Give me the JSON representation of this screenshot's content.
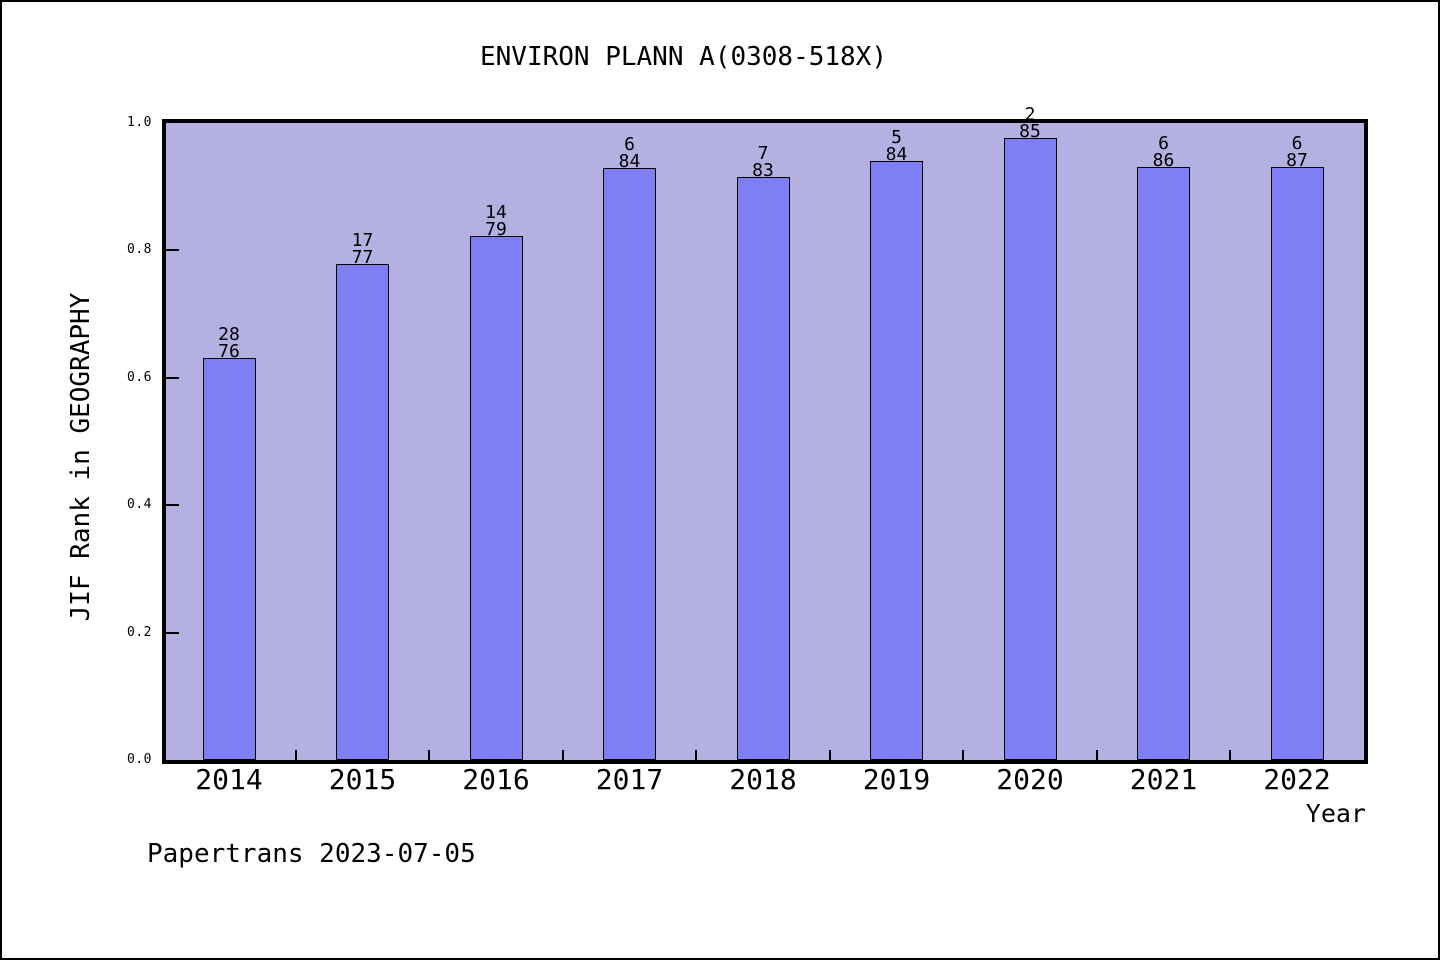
{
  "footer": "Papertrans 2023-07-05",
  "chart_data": {
    "type": "bar",
    "title": "ENVIRON PLANN A(0308-518X)",
    "xlabel": "Year",
    "ylabel": "JIF Rank in GEOGRAPHY",
    "categories": [
      "2014",
      "2015",
      "2016",
      "2017",
      "2018",
      "2019",
      "2020",
      "2021",
      "2022"
    ],
    "series": [
      {
        "name": "JIF Rank in GEOGRAPHY (1 - rank/total)",
        "values": [
          0.6316,
          0.7792,
          0.8228,
          0.9286,
          0.9157,
          0.9405,
          0.9765,
          0.9302,
          0.931
        ]
      }
    ],
    "annotations": [
      {
        "rank": "28",
        "total": "76"
      },
      {
        "rank": "17",
        "total": "77"
      },
      {
        "rank": "14",
        "total": "79"
      },
      {
        "rank": "6",
        "total": "84"
      },
      {
        "rank": "7",
        "total": "83"
      },
      {
        "rank": "5",
        "total": "84"
      },
      {
        "rank": "2",
        "total": "85"
      },
      {
        "rank": "6",
        "total": "86"
      },
      {
        "rank": "6",
        "total": "87"
      }
    ],
    "ylim": [
      0.0,
      1.0
    ],
    "yticks": [
      "0.0",
      "0.2",
      "0.4",
      "0.6",
      "0.8",
      "1.0"
    ],
    "x_minor_ticks_between_categories": true,
    "grid": "off",
    "legend_position": "none",
    "colors": {
      "plot_bg": "#b5b0e2",
      "bar_fill": "#7f7ff5",
      "bar_border": "#000000",
      "frame": "#000000",
      "text": "#000000"
    }
  }
}
